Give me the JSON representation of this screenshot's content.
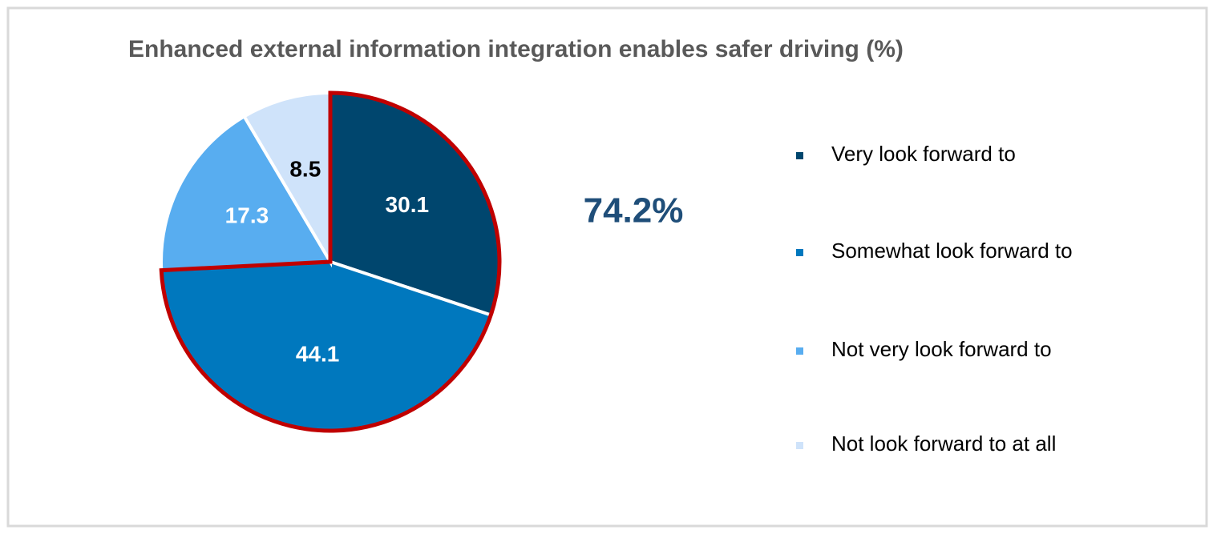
{
  "chart_data": {
    "type": "pie",
    "title": "Enhanced external information integration enables safer driving (%)",
    "categories": [
      "Very look forward to",
      "Somewhat look forward to",
      "Not very look forward to",
      "Not look forward to at all"
    ],
    "values": [
      30.1,
      44.1,
      17.3,
      8.5
    ],
    "colors": [
      "#00466e",
      "#0078be",
      "#58adf0",
      "#cfe3fa"
    ],
    "label_colors": [
      "#ffffff",
      "#ffffff",
      "#ffffff",
      "#000000"
    ],
    "annotation": "74.2%",
    "highlight_color": "#c00000",
    "legend": "right"
  }
}
